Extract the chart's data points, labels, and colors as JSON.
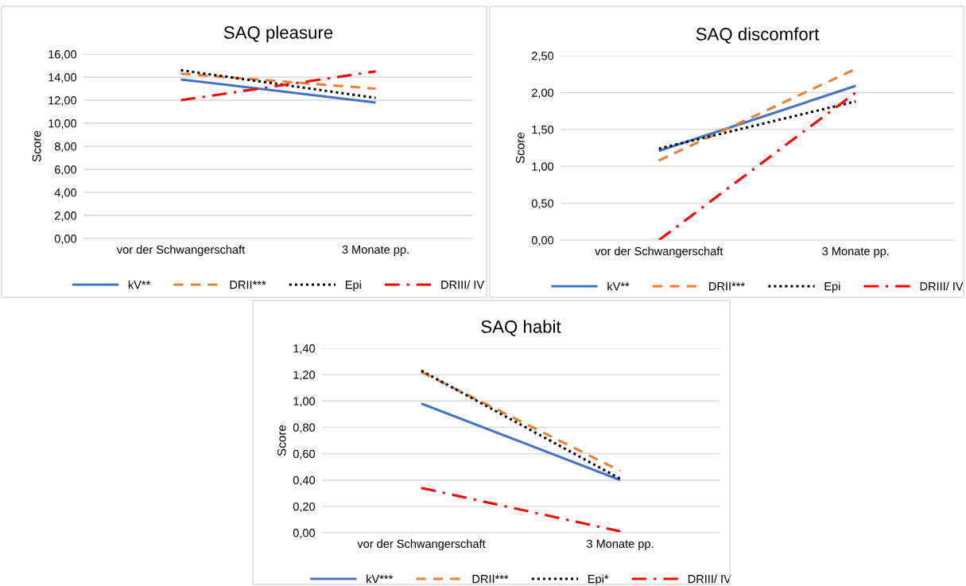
{
  "chart_data": [
    {
      "type": "line",
      "title": "SAQ pleasure",
      "ylabel": "Score",
      "categories": [
        "vor der Schwangerschaft",
        "3 Monate pp."
      ],
      "ylim": [
        0,
        16
      ],
      "yticks": [
        {
          "value": 0,
          "label": "0,00"
        },
        {
          "value": 2,
          "label": "2,00"
        },
        {
          "value": 4,
          "label": "4,00"
        },
        {
          "value": 6,
          "label": "6,00"
        },
        {
          "value": 8,
          "label": "8,00"
        },
        {
          "value": 10,
          "label": "10,00"
        },
        {
          "value": 12,
          "label": "12,00"
        },
        {
          "value": 14,
          "label": "14,00"
        },
        {
          "value": 16,
          "label": "16,00"
        }
      ],
      "grid": "y",
      "legend": "bottom",
      "marker": "none",
      "series": [
        {
          "name": "kV**",
          "color": "#4472c4",
          "line_style": "solid",
          "values": [
            13.8,
            11.8
          ]
        },
        {
          "name": "DRII***",
          "color": "#ed7d31",
          "line_style": "dashed",
          "values": [
            14.3,
            13.0
          ]
        },
        {
          "name": "Epi",
          "color": "#000000",
          "line_style": "dotted",
          "values": [
            14.6,
            12.2
          ]
        },
        {
          "name": "DRIII/ IV",
          "color": "#ff0000",
          "line_style": "dashdot",
          "values": [
            12.0,
            14.5
          ]
        }
      ]
    },
    {
      "type": "line",
      "title": "SAQ discomfort",
      "ylabel": "Score",
      "categories": [
        "vor der Schwangerschaft",
        "3 Monate pp."
      ],
      "ylim": [
        0,
        2.5
      ],
      "yticks": [
        {
          "value": 0,
          "label": "0,00"
        },
        {
          "value": 0.5,
          "label": "0,50"
        },
        {
          "value": 1,
          "label": "1,00"
        },
        {
          "value": 1.5,
          "label": "1,50"
        },
        {
          "value": 2,
          "label": "2,00"
        },
        {
          "value": 2.5,
          "label": "2,50"
        }
      ],
      "grid": "y",
      "legend": "bottom",
      "marker": "none",
      "series": [
        {
          "name": "kV**",
          "color": "#4472c4",
          "line_style": "solid",
          "values": [
            1.21,
            2.09
          ]
        },
        {
          "name": "DRII***",
          "color": "#ed7d31",
          "line_style": "dashed",
          "values": [
            1.08,
            2.32
          ]
        },
        {
          "name": "Epi",
          "color": "#000000",
          "line_style": "dotted",
          "values": [
            1.24,
            1.88
          ]
        },
        {
          "name": "DRIII/ IV",
          "color": "#ff0000",
          "line_style": "dashdot",
          "values": [
            0.0,
            2.0
          ]
        }
      ]
    },
    {
      "type": "line",
      "title": "SAQ habit",
      "ylabel": "Score",
      "categories": [
        "vor der Schwangerschaft",
        "3 Monate pp."
      ],
      "ylim": [
        0,
        1.4
      ],
      "yticks": [
        {
          "value": 0,
          "label": "0,00"
        },
        {
          "value": 0.2,
          "label": "0,20"
        },
        {
          "value": 0.4,
          "label": "0,40"
        },
        {
          "value": 0.6,
          "label": "0,60"
        },
        {
          "value": 0.8,
          "label": "0,80"
        },
        {
          "value": 1.0,
          "label": "1,00"
        },
        {
          "value": 1.2,
          "label": "1,20"
        },
        {
          "value": 1.4,
          "label": "1,40"
        }
      ],
      "grid": "y",
      "legend": "bottom",
      "marker": "none",
      "series": [
        {
          "name": "kV***",
          "color": "#4472c4",
          "line_style": "solid",
          "values": [
            0.98,
            0.4
          ]
        },
        {
          "name": "DRII***",
          "color": "#ed7d31",
          "line_style": "dashed",
          "values": [
            1.22,
            0.47
          ]
        },
        {
          "name": "Epi*",
          "color": "#000000",
          "line_style": "dotted",
          "values": [
            1.23,
            0.41
          ]
        },
        {
          "name": "DRIII/ IV",
          "color": "#ff0000",
          "line_style": "dashdot",
          "values": [
            0.34,
            0.01
          ]
        }
      ]
    }
  ]
}
